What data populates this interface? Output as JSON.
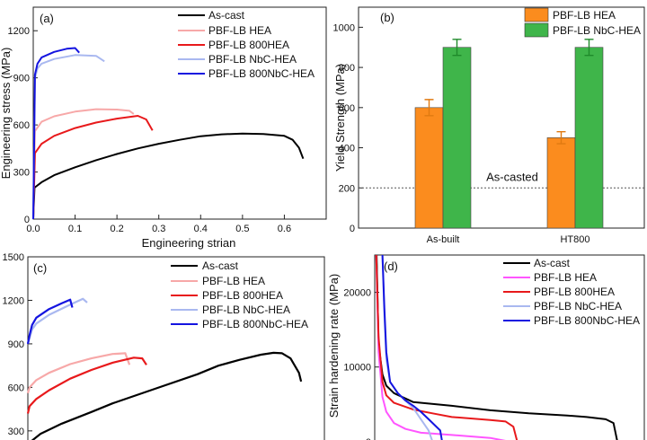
{
  "colors": {
    "as_cast": "#000000",
    "pbf_hea": "#f7a8a8",
    "pbf_800hea": "#e8191b",
    "pbf_nbc": "#a9b8f0",
    "pbf_800nbc": "#1414e0",
    "pbf_hea_bright": "#ff55ff",
    "bar_orange": "#fb8c1e",
    "bar_green": "#3fb54a",
    "err_orange": "#e07a10",
    "err_green": "#1f8a2a"
  },
  "chart_data": [
    {
      "panel_label": "(a)",
      "type": "line",
      "xlabel": "Engineering strian",
      "ylabel": "Engineering stress (MPa)",
      "xlim": [
        0,
        0.7
      ],
      "ylim": [
        0,
        1350
      ],
      "x_ticks": [
        "0.0",
        "0.1",
        "0.2",
        "0.3",
        "0.4",
        "0.5",
        "0.6"
      ],
      "y_ticks": [
        "0",
        "300",
        "600",
        "900",
        "1200"
      ],
      "series": [
        {
          "name": "As-cast",
          "color_key": "as_cast",
          "x": [
            0,
            0.003,
            0.02,
            0.05,
            0.1,
            0.15,
            0.2,
            0.25,
            0.3,
            0.35,
            0.4,
            0.45,
            0.5,
            0.55,
            0.6,
            0.62,
            0.635,
            0.645
          ],
          "y": [
            0,
            200,
            235,
            280,
            330,
            375,
            415,
            450,
            480,
            505,
            528,
            540,
            545,
            542,
            530,
            505,
            455,
            385
          ]
        },
        {
          "name": "PBF-LB HEA",
          "color_key": "pbf_hea",
          "x": [
            0,
            0.004,
            0.02,
            0.05,
            0.1,
            0.15,
            0.2,
            0.23,
            0.24
          ],
          "y": [
            0,
            560,
            620,
            655,
            685,
            700,
            698,
            690,
            670
          ]
        },
        {
          "name": "PBF-LB 800HEA",
          "color_key": "pbf_800hea",
          "x": [
            0,
            0.004,
            0.02,
            0.05,
            0.1,
            0.15,
            0.2,
            0.25,
            0.27,
            0.285
          ],
          "y": [
            0,
            420,
            480,
            530,
            580,
            615,
            640,
            658,
            635,
            565
          ]
        },
        {
          "name": "PBF-LB NbC-HEA",
          "color_key": "pbf_nbc",
          "x": [
            0,
            0.004,
            0.01,
            0.02,
            0.05,
            0.1,
            0.15,
            0.17
          ],
          "y": [
            0,
            900,
            960,
            990,
            1020,
            1045,
            1040,
            1005
          ]
        },
        {
          "name": "PBF-LB 800NbC-HEA",
          "color_key": "pbf_800nbc",
          "x": [
            0,
            0.004,
            0.01,
            0.02,
            0.05,
            0.08,
            0.1,
            0.11
          ],
          "y": [
            0,
            920,
            990,
            1030,
            1065,
            1085,
            1090,
            1060
          ]
        }
      ]
    },
    {
      "panel_label": "(b)",
      "type": "bar",
      "ylabel": "Yield Strength (MPa)",
      "categories": [
        "As-built",
        "HT800"
      ],
      "ylim": [
        0,
        1100
      ],
      "y_ticks": [
        "0",
        "200",
        "400",
        "600",
        "800",
        "1000"
      ],
      "reference_line": {
        "value": 200,
        "label": "As-casted"
      },
      "series": [
        {
          "name": "PBF-LB HEA",
          "color_key": "bar_orange",
          "values": [
            600,
            450
          ],
          "errors": [
            40,
            30
          ]
        },
        {
          "name": "PBF-LB NbC-HEA",
          "color_key": "bar_green",
          "values": [
            900,
            900
          ],
          "errors": [
            40,
            40
          ]
        }
      ]
    },
    {
      "panel_label": "(c)",
      "type": "line",
      "xlim": [
        0,
        0.7
      ],
      "ylim": [
        200,
        1500
      ],
      "y_ticks": [
        "300",
        "600",
        "900",
        "1200",
        "1500"
      ],
      "series": [
        {
          "name": "As-cast",
          "color_key": "as_cast",
          "x": [
            0,
            0.03,
            0.08,
            0.15,
            0.2,
            0.3,
            0.4,
            0.45,
            0.5,
            0.55,
            0.58,
            0.6,
            0.62,
            0.64,
            0.645
          ],
          "y": [
            210,
            280,
            350,
            430,
            490,
            590,
            690,
            750,
            790,
            825,
            838,
            835,
            800,
            700,
            640
          ]
        },
        {
          "name": "PBF-LB HEA",
          "color_key": "pbf_hea",
          "x": [
            0,
            0.004,
            0.02,
            0.05,
            0.1,
            0.15,
            0.2,
            0.23,
            0.24
          ],
          "y": [
            560,
            600,
            650,
            700,
            760,
            800,
            830,
            835,
            755
          ]
        },
        {
          "name": "PBF-LB 800HEA",
          "color_key": "pbf_800hea",
          "x": [
            0,
            0.004,
            0.02,
            0.05,
            0.1,
            0.15,
            0.2,
            0.25,
            0.27,
            0.28
          ],
          "y": [
            420,
            470,
            520,
            580,
            660,
            720,
            770,
            805,
            800,
            755
          ]
        },
        {
          "name": "PBF-LB NbC-HEA",
          "color_key": "pbf_nbc",
          "x": [
            0,
            0.004,
            0.01,
            0.02,
            0.05,
            0.1,
            0.13,
            0.14
          ],
          "y": [
            900,
            940,
            1000,
            1040,
            1100,
            1170,
            1210,
            1185
          ]
        },
        {
          "name": "PBF-LB 800NbC-HEA",
          "color_key": "pbf_800nbc",
          "x": [
            0,
            0.004,
            0.01,
            0.02,
            0.05,
            0.08,
            0.1,
            0.105
          ],
          "y": [
            900,
            960,
            1030,
            1080,
            1140,
            1180,
            1205,
            1150
          ]
        }
      ]
    },
    {
      "panel_label": "(d)",
      "type": "line",
      "ylabel": "Strain hardening rate (MPa)",
      "xlim": [
        0,
        0.7
      ],
      "ylim": [
        -500,
        25000
      ],
      "y_ticks": [
        "0",
        "10000",
        "20000"
      ],
      "series": [
        {
          "name": "As-cast",
          "color_key": "as_cast",
          "x": [
            0.005,
            0.01,
            0.02,
            0.03,
            0.05,
            0.1,
            0.2,
            0.3,
            0.4,
            0.5,
            0.55,
            0.6,
            0.62,
            0.63
          ],
          "y": [
            25000,
            13000,
            9000,
            7500,
            6500,
            5300,
            4800,
            4200,
            3800,
            3500,
            3300,
            3000,
            2500,
            0
          ]
        },
        {
          "name": "PBF-LB HEA",
          "color_key": "pbf_hea_bright",
          "x": [
            0.004,
            0.01,
            0.02,
            0.03,
            0.05,
            0.08,
            0.12,
            0.2,
            0.3,
            0.35
          ],
          "y": [
            25000,
            12000,
            6000,
            4000,
            2500,
            1700,
            1200,
            900,
            500,
            0
          ]
        },
        {
          "name": "PBF-LB 800HEA",
          "color_key": "pbf_800hea",
          "x": [
            0.004,
            0.01,
            0.02,
            0.03,
            0.05,
            0.1,
            0.15,
            0.2,
            0.3,
            0.34,
            0.36,
            0.37
          ],
          "y": [
            25000,
            14000,
            8000,
            6200,
            5200,
            4300,
            3800,
            3300,
            2900,
            2700,
            2000,
            0
          ]
        },
        {
          "name": "PBF-LB NbC-HEA",
          "color_key": "pbf_nbc",
          "x": [
            0.02,
            0.025,
            0.03,
            0.04,
            0.06,
            0.08,
            0.1,
            0.12,
            0.14,
            0.15
          ],
          "y": [
            25000,
            17000,
            11000,
            8000,
            6500,
            5500,
            4500,
            3000,
            1500,
            0
          ]
        },
        {
          "name": "PBF-LB 800NbC-HEA",
          "color_key": "pbf_800nbc",
          "x": [
            0.02,
            0.025,
            0.03,
            0.04,
            0.06,
            0.08,
            0.1,
            0.12,
            0.14,
            0.17,
            0.175
          ],
          "y": [
            25000,
            18000,
            12000,
            8000,
            6500,
            5500,
            4800,
            4000,
            3000,
            1500,
            0
          ]
        }
      ]
    }
  ]
}
